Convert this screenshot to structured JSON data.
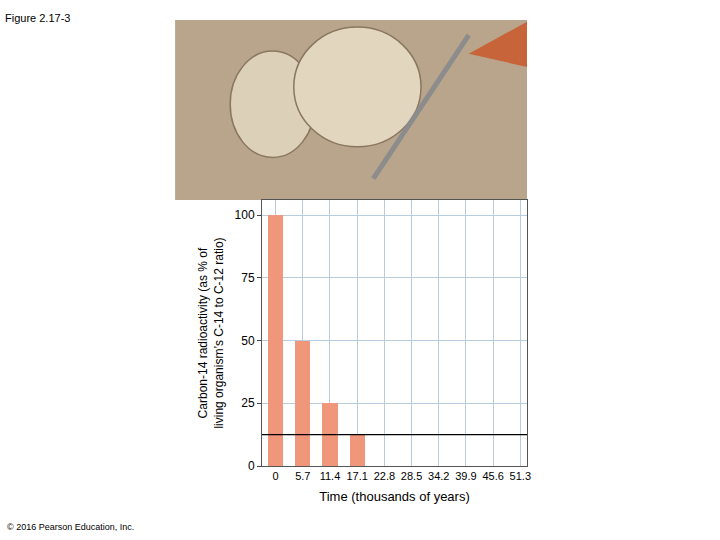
{
  "chart_data": {
    "type": "bar",
    "x": [
      0,
      5.7,
      11.4,
      17.1
    ],
    "values": [
      100,
      50,
      25,
      12.5
    ],
    "color": "#f0967a",
    "xlabel": "Time (thousands of years)",
    "ylabel": "Carbon-14 radioactivity (as % of\nliving organism’s C-14 to C-12 ratio)",
    "xlim": [
      -2.85,
      52.7
    ],
    "xticks": [
      0,
      5.7,
      11.4,
      17.1,
      22.8,
      28.5,
      34.2,
      39.9,
      45.6,
      51.3
    ],
    "ylim": [
      0,
      106
    ],
    "yticks": [
      0,
      25,
      50,
      75,
      100
    ],
    "reference_line": 12.5,
    "grid": true
  },
  "figure_label": "Figure 2.17-3",
  "credit": "© 2016 Pearson Education, Inc."
}
